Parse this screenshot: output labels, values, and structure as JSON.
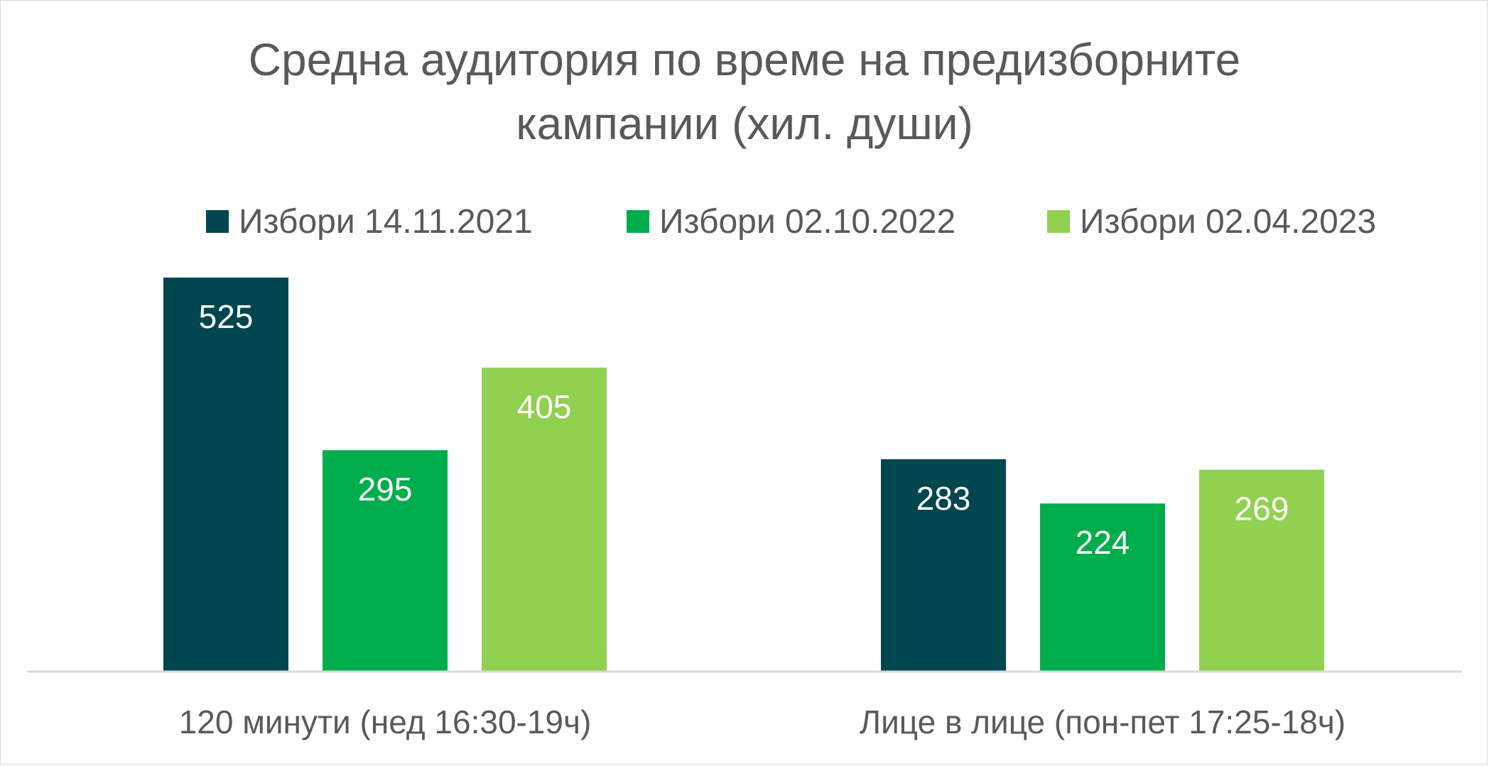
{
  "chart_data": {
    "type": "bar",
    "title_lines": [
      "Средна аудитория по време на предизборните",
      "кампании (хил. души)"
    ],
    "categories": [
      "120 минути (нед 16:30-19ч)",
      "Лице в лице (пон-пет 17:25-18ч)"
    ],
    "series": [
      {
        "name": "Избори 14.11.2021",
        "color": "#00464f",
        "values": [
          525,
          283
        ]
      },
      {
        "name": "Избори 02.10.2022",
        "color": "#00ad4d",
        "values": [
          295,
          224
        ]
      },
      {
        "name": "Избори 02.04.2023",
        "color": "#92d050",
        "values": [
          405,
          269
        ]
      }
    ],
    "ylim": [
      0,
      550
    ],
    "grid": false,
    "legend_position": "top",
    "data_labels": "inside-top"
  },
  "colors": {
    "axis": "#d9d9d9",
    "text": "#595959",
    "label": "#ffffff"
  }
}
